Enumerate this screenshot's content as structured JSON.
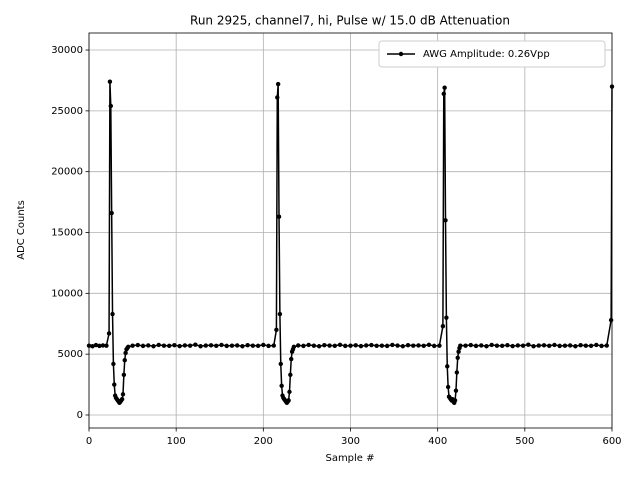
{
  "chart_data": {
    "type": "line",
    "title": "Run 2925, channel7, hi, Pulse w/ 15.0 dB Attenuation",
    "x_label": "Sample #",
    "y_label": "ADC Counts",
    "x": [
      0,
      4,
      8,
      12,
      16,
      20,
      23,
      24,
      25,
      26,
      27,
      28,
      29,
      30,
      31,
      32,
      33,
      34,
      35,
      36,
      37,
      38,
      39,
      40,
      41,
      42,
      43,
      44,
      45,
      50,
      56,
      62,
      68,
      74,
      80,
      86,
      92,
      98,
      104,
      110,
      116,
      122,
      128,
      134,
      140,
      146,
      152,
      158,
      164,
      170,
      176,
      182,
      188,
      194,
      200,
      206,
      212,
      215,
      216,
      217,
      218,
      219,
      220,
      221,
      222,
      223,
      224,
      225,
      226,
      227,
      228,
      229,
      230,
      231,
      232,
      233,
      234,
      235,
      240,
      246,
      252,
      258,
      264,
      270,
      276,
      282,
      288,
      294,
      300,
      306,
      312,
      318,
      324,
      330,
      336,
      342,
      348,
      354,
      360,
      366,
      372,
      378,
      384,
      390,
      396,
      402,
      406,
      407,
      408,
      409,
      410,
      411,
      412,
      413,
      414,
      415,
      416,
      417,
      418,
      419,
      420,
      421,
      422,
      423,
      424,
      425,
      426,
      432,
      438,
      444,
      450,
      456,
      462,
      468,
      474,
      480,
      486,
      492,
      498,
      504,
      510,
      516,
      522,
      528,
      534,
      540,
      546,
      552,
      558,
      564,
      570,
      576,
      582,
      588,
      594,
      599,
      600
    ],
    "series": [
      {
        "name": "AWG Amplitude: 0.26Vpp",
        "color": "#000000",
        "marker": "circle",
        "values": [
          5700,
          5650,
          5750,
          5680,
          5720,
          5700,
          6700,
          27400,
          25400,
          16600,
          8300,
          4200,
          2500,
          1600,
          1400,
          1300,
          1200,
          1100,
          1000,
          1100,
          1200,
          1300,
          1700,
          3300,
          4500,
          5100,
          5400,
          5500,
          5600,
          5700,
          5750,
          5680,
          5720,
          5650,
          5760,
          5700,
          5690,
          5740,
          5660,
          5720,
          5700,
          5780,
          5650,
          5710,
          5730,
          5690,
          5760,
          5680,
          5700,
          5720,
          5650,
          5740,
          5700,
          5690,
          5760,
          5680,
          5710,
          7000,
          26100,
          27200,
          16300,
          8300,
          4200,
          2400,
          1600,
          1400,
          1300,
          1200,
          1100,
          1000,
          1100,
          1200,
          1900,
          3300,
          4600,
          5200,
          5400,
          5600,
          5720,
          5680,
          5760,
          5700,
          5650,
          5740,
          5710,
          5690,
          5770,
          5680,
          5700,
          5730,
          5660,
          5720,
          5750,
          5690,
          5700,
          5680,
          5760,
          5710,
          5650,
          5740,
          5700,
          5720,
          5690,
          5770,
          5680,
          5700,
          7300,
          26400,
          26900,
          16000,
          8000,
          4000,
          2300,
          1500,
          1400,
          1300,
          1200,
          1300,
          1100,
          1000,
          1200,
          2000,
          3500,
          4700,
          5200,
          5500,
          5700,
          5700,
          5750,
          5680,
          5720,
          5650,
          5760,
          5700,
          5690,
          5740,
          5660,
          5720,
          5700,
          5780,
          5650,
          5710,
          5730,
          5690,
          5760,
          5680,
          5700,
          5720,
          5650,
          5740,
          5700,
          5690,
          5760,
          5680,
          5710,
          7800,
          27000
        ]
      }
    ],
    "xlim": [
      0,
      600
    ],
    "xticks": [
      0,
      100,
      200,
      300,
      400,
      500,
      600
    ],
    "ylim": [
      -1070,
      31400
    ],
    "yticks": [
      0,
      5000,
      10000,
      15000,
      20000,
      25000,
      30000
    ],
    "grid": true,
    "legend": "upper right"
  }
}
